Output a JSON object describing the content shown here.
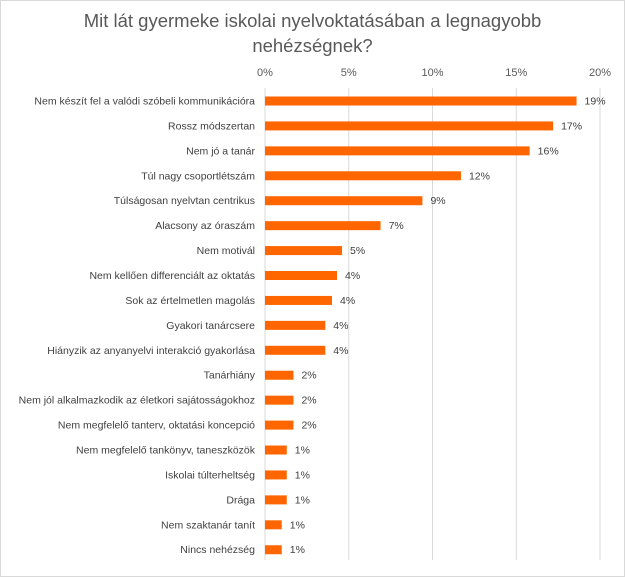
{
  "chart_data": {
    "type": "bar",
    "orientation": "horizontal",
    "title": "Mit lát gyermeke iskolai nyelvoktatásában a legnagyobb nehézségnek?",
    "xlabel": "",
    "ylabel": "",
    "xlim": [
      0,
      20
    ],
    "ticks": [
      "0%",
      "5%",
      "10%",
      "15%",
      "20%"
    ],
    "tick_values": [
      0,
      5,
      10,
      15,
      20
    ],
    "grid": true,
    "bar_color": "#ff6600",
    "categories": [
      "Nem készít fel a valódi szóbeli kommunikációra",
      "Rossz módszertan",
      "Nem jó a tanár",
      "Túl nagy csoportlétszám",
      "Túlságosan nyelvtan centrikus",
      "Alacsony az óraszám",
      "Nem motivál",
      "Nem kellően differenciált az oktatás",
      "Sok az értelmetlen magolás",
      "Gyakori tanárcsere",
      "Hiányzik az anyanyelvi interakció gyakorlása",
      "Tanárhiány",
      "Nem jól alkalmazkodik az életkori sajátosságokhoz",
      "Nem megfelelő tanterv, oktatási koncepció",
      "Nem megfelelő tankönyv, taneszközök",
      "Iskolai túlterheltség",
      "Drága",
      "Nem szaktanár tanít",
      "Nincs nehézség"
    ],
    "values": [
      18.6,
      17.2,
      15.8,
      11.7,
      9.4,
      6.9,
      4.6,
      4.3,
      4.0,
      3.6,
      3.6,
      1.7,
      1.7,
      1.7,
      1.3,
      1.3,
      1.3,
      1.0,
      1.0
    ],
    "labels": [
      "19%",
      "17%",
      "16%",
      "12%",
      "9%",
      "7%",
      "5%",
      "4%",
      "4%",
      "4%",
      "4%",
      "2%",
      "2%",
      "2%",
      "1%",
      "1%",
      "1%",
      "1%",
      "1%"
    ]
  }
}
